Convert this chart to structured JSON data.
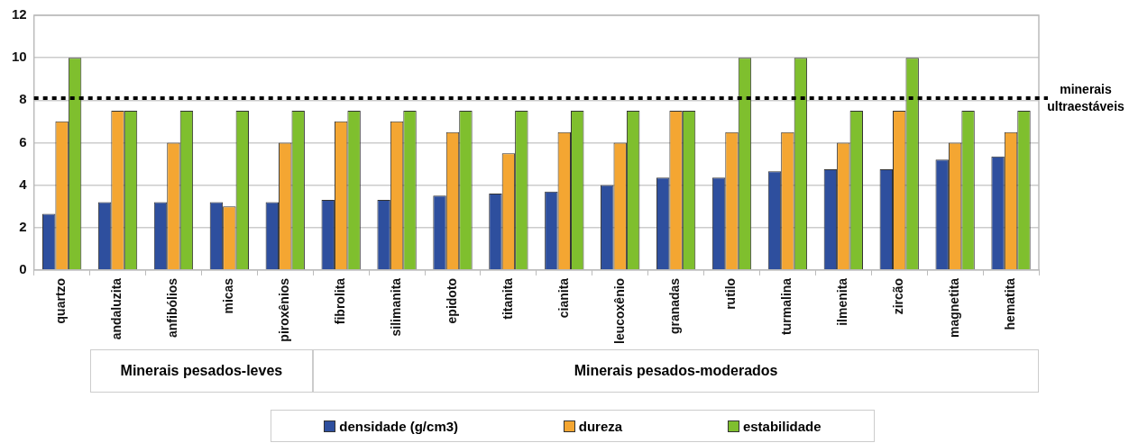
{
  "chart_data": {
    "type": "bar",
    "categories": [
      "quartzo",
      "andaluzita",
      "anfibólios",
      "micas",
      "piroxênios",
      "fibrolita",
      "silimanita",
      "epidoto",
      "titanita",
      "cianita",
      "leucoxênio",
      "granadas",
      "rutilo",
      "turmalina",
      "ilmenita",
      "zircão",
      "magnetita",
      "hematita"
    ],
    "series": [
      {
        "name": "densidade (g/cm3)",
        "color": "#2e4f9e",
        "values": [
          2.65,
          3.2,
          3.2,
          3.2,
          3.2,
          3.3,
          3.3,
          3.5,
          3.6,
          3.7,
          4.0,
          4.35,
          4.35,
          4.65,
          4.75,
          4.75,
          5.2,
          5.35
        ]
      },
      {
        "name": "dureza",
        "color": "#f4a632",
        "values": [
          7,
          7.5,
          6,
          3,
          6,
          7,
          7,
          6.5,
          5.5,
          6.5,
          6,
          7.5,
          6.5,
          6.5,
          6,
          7.5,
          6,
          6.5
        ]
      },
      {
        "name": "estabilidade",
        "color": "#7fbf2e",
        "values": [
          10,
          7.5,
          7.5,
          7.5,
          7.5,
          7.5,
          7.5,
          7.5,
          7.5,
          7.5,
          7.5,
          7.5,
          10,
          10,
          7.5,
          10,
          7.5,
          7.5
        ]
      }
    ],
    "ylim": [
      0,
      12
    ],
    "yticks": [
      0,
      2,
      4,
      6,
      8,
      10,
      12
    ],
    "grid": "y",
    "legend": "bottom",
    "ref_lines": [
      {
        "axis": "y",
        "value": 8.1,
        "label": "minerais ultraestáveis",
        "color": "#000000",
        "line_style": "dotted"
      }
    ],
    "annotations": [
      "Minerais pesados-leves",
      "Minerais pesados-moderados"
    ]
  }
}
